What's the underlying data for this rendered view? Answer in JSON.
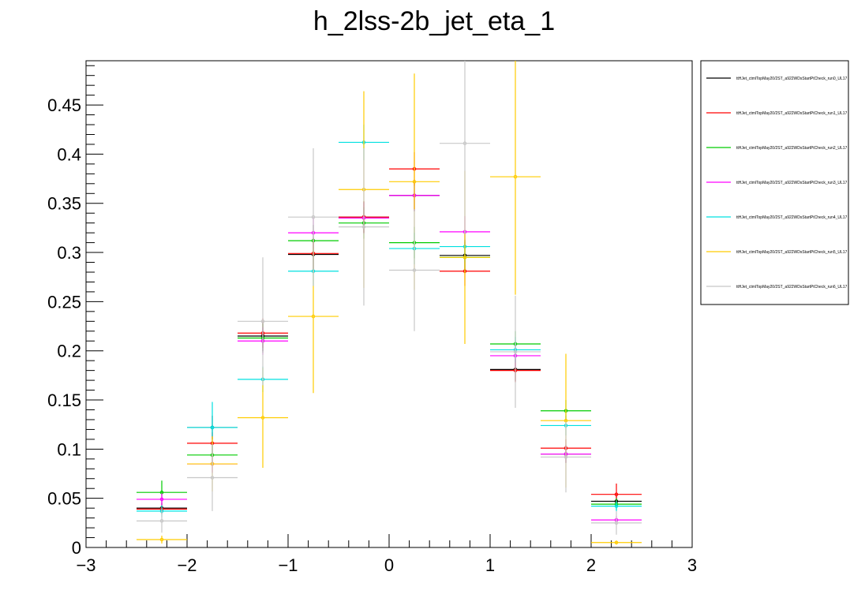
{
  "chart_data": {
    "type": "scatter",
    "title": "h_2lss-2b_jet_eta_1",
    "xlabel": "",
    "ylabel": "",
    "xlim": [
      -3,
      3
    ],
    "ylim": [
      0,
      0.495
    ],
    "x_ticks": [
      -3,
      -2,
      -1,
      0,
      1,
      2,
      3
    ],
    "x_tick_labels": [
      "−3",
      "−2",
      "−1",
      "0",
      "1",
      "2",
      "3"
    ],
    "y_ticks": [
      0,
      0.05,
      0.1,
      0.15,
      0.2,
      0.25,
      0.3,
      0.35,
      0.4,
      0.45
    ],
    "y_tick_labels": [
      "0",
      "0.05",
      "0.1",
      "0.15",
      "0.2",
      "0.25",
      "0.3",
      "0.35",
      "0.4",
      "0.45"
    ],
    "bin_width": 0.5,
    "x": [
      -2.25,
      -1.75,
      -1.25,
      -0.75,
      -0.25,
      0.25,
      0.75,
      1.25,
      1.75,
      2.25
    ],
    "legend_position": "right",
    "series": [
      {
        "name": "ttHJet_ctmlTopMay20/2ST_a922WDsStartPtCheck_run0_UL17",
        "color": "#000000",
        "values": [
          0.04,
          0.122,
          0.215,
          0.298,
          0.336,
          0.358,
          0.297,
          0.181,
          0.095,
          0.047
        ],
        "errors": [
          0.005,
          0.012,
          0.015,
          0.016,
          0.016,
          0.016,
          0.016,
          0.012,
          0.009,
          0.006
        ]
      },
      {
        "name": "ttHJet_ctmlTopMay20/2ST_a922WDsStartPtCheck_run1_UL17",
        "color": "#ff0000",
        "values": [
          0.039,
          0.106,
          0.218,
          0.299,
          0.336,
          0.385,
          0.281,
          0.18,
          0.101,
          0.054
        ],
        "errors": [
          0.005,
          0.011,
          0.015,
          0.016,
          0.016,
          0.017,
          0.015,
          0.012,
          0.009,
          0.011
        ]
      },
      {
        "name": "ttHJet_ctmlTopMay20/2ST_a922WDsStartPtCheck_run2_UL17",
        "color": "#00cc00",
        "values": [
          0.056,
          0.094,
          0.213,
          0.312,
          0.33,
          0.31,
          0.295,
          0.207,
          0.139,
          0.044
        ],
        "errors": [
          0.012,
          0.01,
          0.015,
          0.016,
          0.016,
          0.016,
          0.016,
          0.013,
          0.011,
          0.006
        ]
      },
      {
        "name": "ttHJet_ctmlTopMay20/2ST_a922WDsStartPtCheck_run3_UL17",
        "color": "#ff00ff",
        "values": [
          0.049,
          0.085,
          0.21,
          0.32,
          0.335,
          0.358,
          0.321,
          0.195,
          0.095,
          0.028
        ],
        "errors": [
          0.006,
          0.009,
          0.014,
          0.016,
          0.016,
          0.016,
          0.016,
          0.012,
          0.009,
          0.004
        ]
      },
      {
        "name": "ttHJet_ctmlTopMay20/2ST_a922WDsStartPtCheck_run4_UL17",
        "color": "#00e0e0",
        "values": [
          0.037,
          0.122,
          0.171,
          0.281,
          0.412,
          0.304,
          0.306,
          0.201,
          0.124,
          0.042
        ],
        "errors": [
          0.006,
          0.026,
          0.013,
          0.015,
          0.018,
          0.016,
          0.016,
          0.013,
          0.01,
          0.005
        ]
      },
      {
        "name": "ttHJet_ctmlTopMay20/2ST_a922WDsStartPtCheck_run5_UL17",
        "color": "#ffcc00",
        "values": [
          0.008,
          0.085,
          0.132,
          0.235,
          0.364,
          0.372,
          0.295,
          0.377,
          0.129,
          0.005
        ],
        "errors": [
          0.004,
          0.028,
          0.051,
          0.078,
          0.1,
          0.11,
          0.088,
          0.12,
          0.068,
          0.002
        ]
      },
      {
        "name": "ttHJet_ctmlTopMay20/2ST_a922WDsStartPtCheck_run6_UL17",
        "color": "#c8c8c8",
        "values": [
          0.027,
          0.071,
          0.23,
          0.336,
          0.326,
          0.282,
          0.411,
          0.199,
          0.092,
          0.025
        ],
        "errors": [
          0.012,
          0.034,
          0.065,
          0.07,
          0.08,
          0.062,
          0.092,
          0.057,
          0.036,
          0.012
        ]
      }
    ]
  }
}
